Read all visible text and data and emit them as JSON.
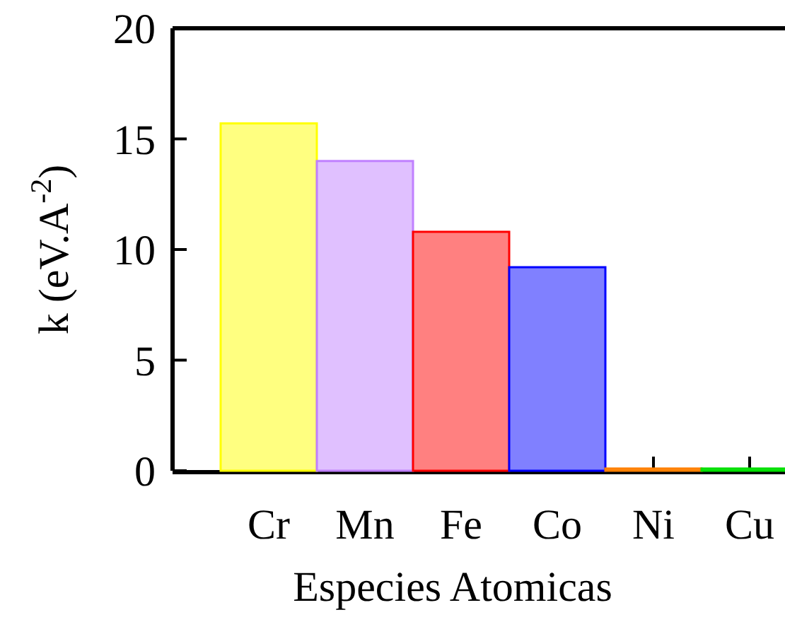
{
  "chart_data": {
    "type": "bar",
    "categories": [
      "Cr",
      "Mn",
      "Fe",
      "Co",
      "Ni",
      "Cu"
    ],
    "values": [
      15.7,
      14.0,
      10.8,
      9.2,
      0.1,
      0.1
    ],
    "colors": [
      "#ffff00",
      "#c080ff",
      "#ff0000",
      "#0000ff",
      "#ff8000",
      "#00e000"
    ],
    "xlabel": "Especies Atomicas",
    "ylabel": "k (eV.A$^{-2}$)",
    "ylim": [
      0,
      20
    ],
    "yticks": [
      0,
      5,
      10,
      15,
      20
    ],
    "grid": false
  }
}
